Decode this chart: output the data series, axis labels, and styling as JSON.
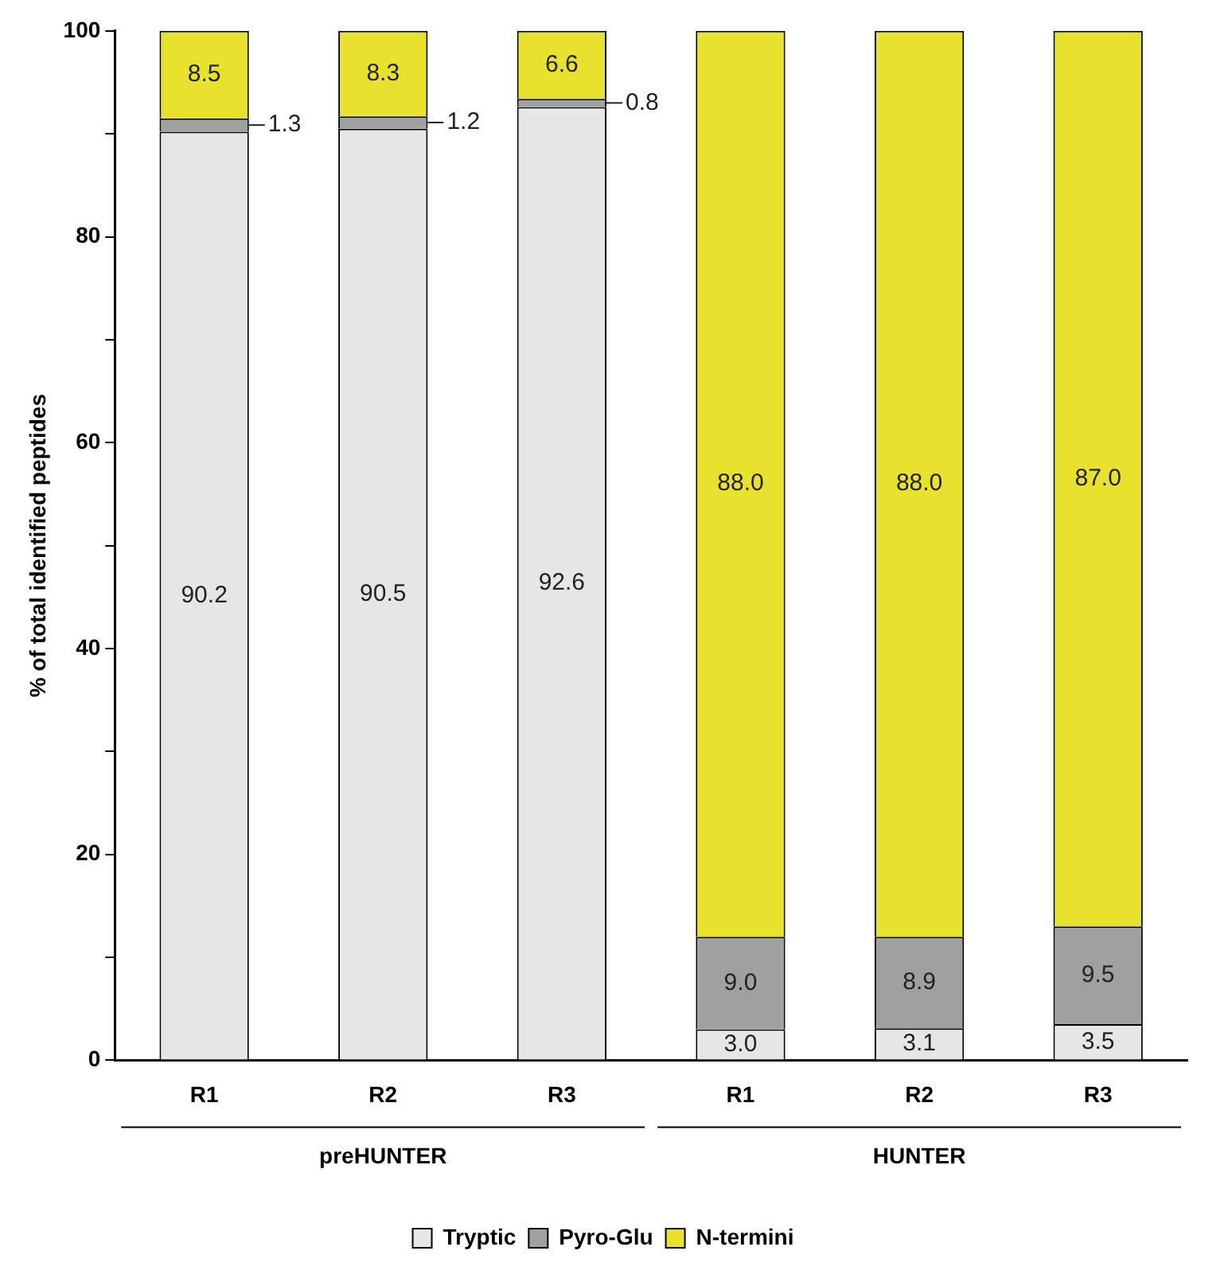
{
  "chart_data": {
    "type": "bar",
    "stacked": true,
    "ylabel": "% of total identified peptides",
    "categories": [
      "R1",
      "R2",
      "R3",
      "R1",
      "R2",
      "R3"
    ],
    "series": [
      {
        "name": "Tryptic",
        "color": "#e6e6e6",
        "values": [
          90.2,
          90.5,
          92.6,
          3.0,
          3.1,
          3.5
        ],
        "value_labels": [
          "90.2",
          "90.5",
          "92.6",
          "3.0",
          "3.1",
          "3.5"
        ]
      },
      {
        "name": "Pyro-Glu",
        "color": "#a0a0a0",
        "values": [
          1.3,
          1.2,
          0.8,
          9.0,
          8.9,
          9.5
        ],
        "value_labels": [
          "1.3",
          "1.2",
          "0.8",
          "9.0",
          "8.9",
          "9.5"
        ]
      },
      {
        "name": "N-termini",
        "color": "#e8e22e",
        "values": [
          8.5,
          8.3,
          6.6,
          88.0,
          88.0,
          87.0
        ],
        "value_labels": [
          "8.5",
          "8.3",
          "6.6",
          "88.0",
          "88.0",
          "87.0"
        ]
      }
    ],
    "ylim": [
      0,
      100
    ],
    "yticks": [
      0,
      {
        "value": 10,
        "label": null
      },
      20,
      {
        "value": 30,
        "label": null
      },
      40,
      {
        "value": 50,
        "label": null
      },
      60,
      {
        "value": 70,
        "label": null
      },
      80,
      {
        "value": 90,
        "label": null
      },
      100
    ],
    "grid": false,
    "legend": "bottom",
    "annotations": [
      "preHUNTER",
      "HUNTER"
    ]
  }
}
